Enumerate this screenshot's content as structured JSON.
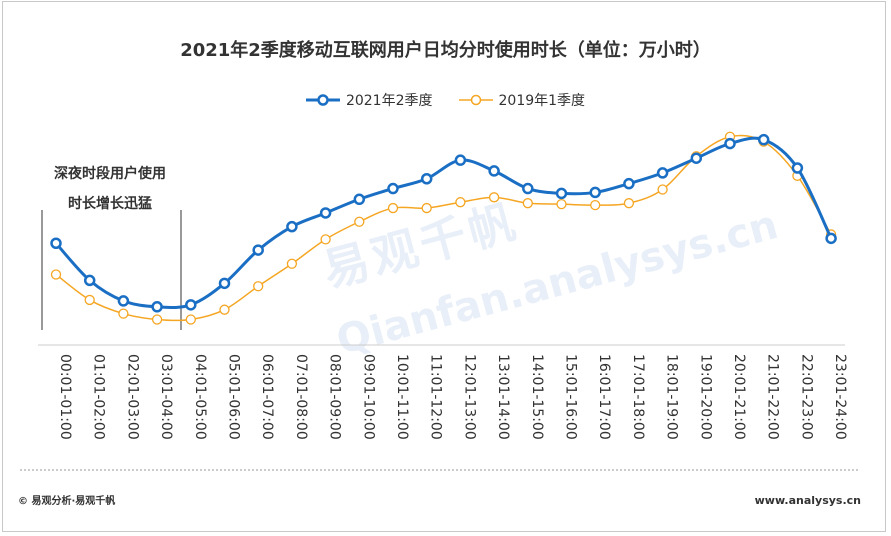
{
  "chart_data": {
    "type": "line",
    "title": "2021年2季度移动互联网用户日均分时使用时长（单位：万小时）",
    "xlabel": "",
    "ylabel": "",
    "categories": [
      "00:01-01:00",
      "01:01-02:00",
      "02:01-03:00",
      "03:01-04:00",
      "04:01-05:00",
      "05:01-06:00",
      "06:01-07:00",
      "07:01-08:00",
      "08:01-09:00",
      "09:01-10:00",
      "10:01-11:00",
      "11:01-12:00",
      "12:01-13:00",
      "13:01-14:00",
      "14:01-15:00",
      "15:01-16:00",
      "16:01-17:00",
      "17:01-18:00",
      "18:01-19:00",
      "19:01-20:00",
      "20:01-21:00",
      "21:01-22:00",
      "22:01-23:00",
      "23:01-24:00"
    ],
    "series": [
      {
        "name": "2021年2季度",
        "color": "#1a6fc4",
        "values": [
          99,
          61,
          40,
          34,
          36,
          58,
          92,
          116,
          130,
          144,
          155,
          165,
          184,
          173,
          155,
          150,
          151,
          160,
          171,
          186,
          201,
          205,
          176,
          104
        ]
      },
      {
        "name": "2019年1季度",
        "color": "#f5a623",
        "values": [
          67,
          41,
          27,
          21,
          21,
          31,
          55,
          78,
          103,
          121,
          135,
          135,
          141,
          146,
          140,
          139,
          138,
          140,
          154,
          188,
          208,
          203,
          168,
          108
        ]
      }
    ],
    "ylim": [
      0,
      220
    ],
    "annotation": [
      "深夜时段用户使用",
      "时长增长迅猛"
    ]
  },
  "footer": {
    "left": "© 易观分析·易观千帆",
    "right": "www.analysys.cn"
  },
  "watermark": {
    "cn": "易观千帆",
    "en": "Qianfan.analysys.cn"
  }
}
